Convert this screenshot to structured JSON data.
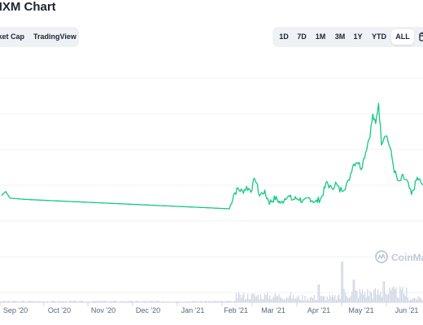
{
  "header": {
    "title": "NXM Chart"
  },
  "chart_type_tabs": [
    {
      "label": "rket Cap"
    },
    {
      "label": "TradingView"
    }
  ],
  "range_tabs": [
    {
      "label": "1D",
      "active": false
    },
    {
      "label": "7D",
      "active": false
    },
    {
      "label": "1M",
      "active": false
    },
    {
      "label": "3M",
      "active": false
    },
    {
      "label": "1Y",
      "active": false
    },
    {
      "label": "YTD",
      "active": false
    },
    {
      "label": "ALL",
      "active": true
    }
  ],
  "watermark": "CoinMa",
  "colors": {
    "line": "#16c784",
    "volume": "#cfd6e4",
    "grid": "#eff2f5",
    "axis_text": "#58667e",
    "watermark": "#c3cbd8"
  },
  "chart_data": {
    "type": "line",
    "x_tick_labels": [
      "Sep '20",
      "Oct '20",
      "Nov '20",
      "Dec '20",
      "Jan '21",
      "Feb '21",
      "Mar '21",
      "Apr '21",
      "May '21",
      "Jun '21"
    ],
    "grid": true,
    "series": [
      {
        "values_by_date": [
          [
            "2020-08-28",
            0.22
          ],
          [
            "2020-08-31",
            0.25
          ],
          [
            "2020-09-03",
            0.2
          ],
          [
            "2020-09-15",
            0.19
          ],
          [
            "2020-10-15",
            0.175
          ],
          [
            "2020-11-15",
            0.16
          ],
          [
            "2020-12-15",
            0.145
          ],
          [
            "2021-01-15",
            0.13
          ],
          [
            "2021-02-03",
            0.12
          ],
          [
            "2021-02-06",
            0.23
          ],
          [
            "2021-02-09",
            0.27
          ],
          [
            "2021-02-12",
            0.25
          ],
          [
            "2021-02-15",
            0.28
          ],
          [
            "2021-02-18",
            0.26
          ],
          [
            "2021-02-21",
            0.35
          ],
          [
            "2021-02-24",
            0.22
          ],
          [
            "2021-02-27",
            0.25
          ],
          [
            "2021-03-03",
            0.17
          ],
          [
            "2021-03-07",
            0.2
          ],
          [
            "2021-03-11",
            0.16
          ],
          [
            "2021-03-15",
            0.22
          ],
          [
            "2021-03-19",
            0.19
          ],
          [
            "2021-03-23",
            0.2
          ],
          [
            "2021-03-27",
            0.17
          ],
          [
            "2021-03-31",
            0.2
          ],
          [
            "2021-04-04",
            0.17
          ],
          [
            "2021-04-08",
            0.2
          ],
          [
            "2021-04-12",
            0.32
          ],
          [
            "2021-04-15",
            0.27
          ],
          [
            "2021-04-18",
            0.31
          ],
          [
            "2021-04-21",
            0.26
          ],
          [
            "2021-04-24",
            0.28
          ],
          [
            "2021-04-27",
            0.32
          ],
          [
            "2021-04-30",
            0.45
          ],
          [
            "2021-05-03",
            0.48
          ],
          [
            "2021-05-06",
            0.43
          ],
          [
            "2021-05-09",
            0.55
          ],
          [
            "2021-05-12",
            0.68
          ],
          [
            "2021-05-14",
            0.82
          ],
          [
            "2021-05-16",
            0.75
          ],
          [
            "2021-05-18",
            0.92
          ],
          [
            "2021-05-20",
            0.62
          ],
          [
            "2021-05-23",
            0.69
          ],
          [
            "2021-05-26",
            0.58
          ],
          [
            "2021-05-29",
            0.41
          ],
          [
            "2021-06-01",
            0.31
          ],
          [
            "2021-06-04",
            0.36
          ],
          [
            "2021-06-07",
            0.32
          ],
          [
            "2021-06-10",
            0.22
          ],
          [
            "2021-06-14",
            0.35
          ],
          [
            "2021-06-18",
            0.3
          ]
        ]
      }
    ]
  }
}
